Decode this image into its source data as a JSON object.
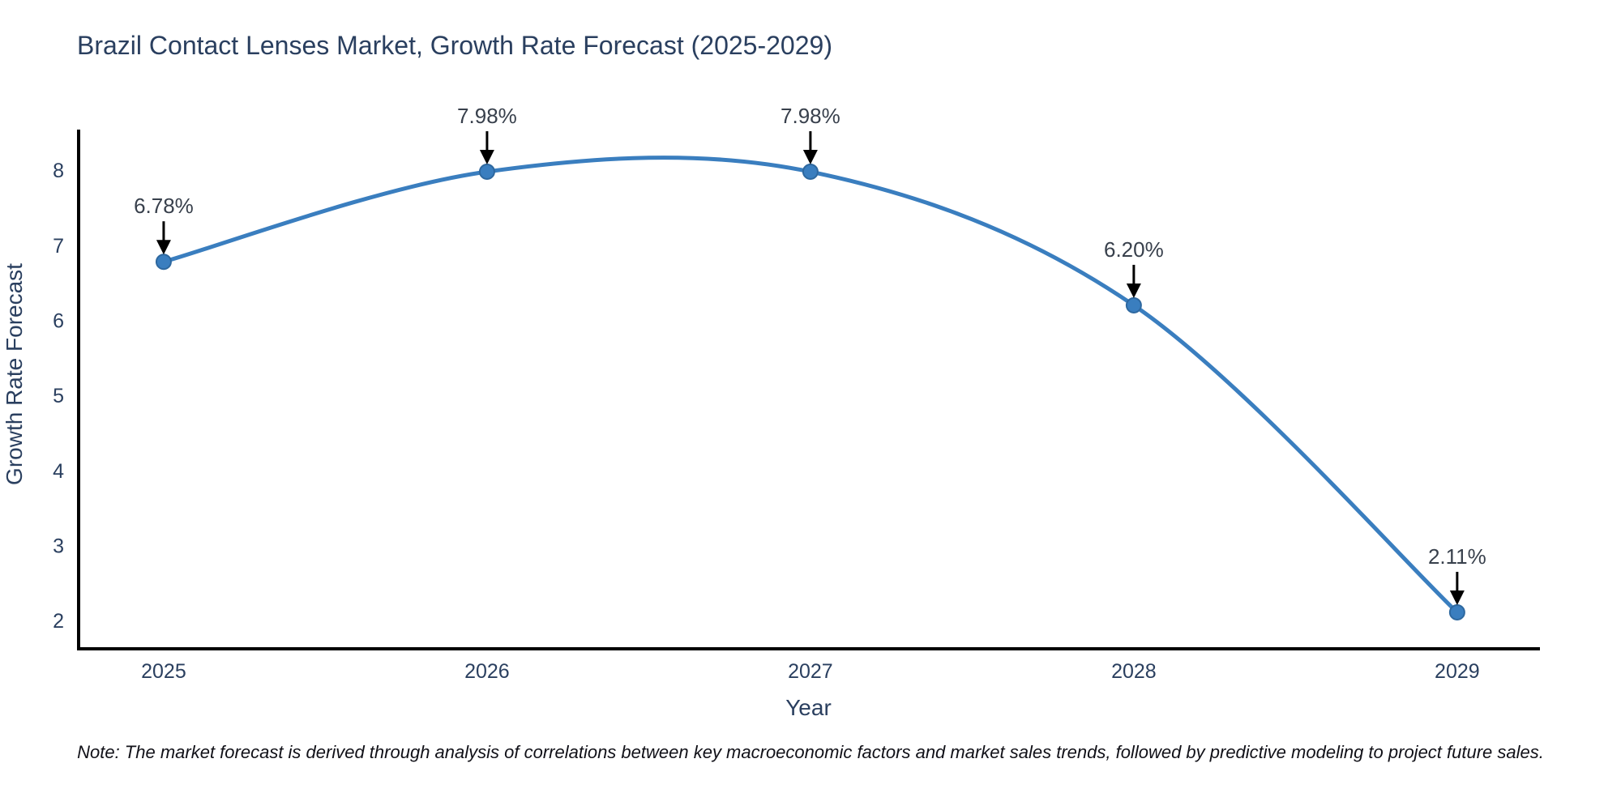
{
  "chart_data": {
    "type": "line",
    "title": "Brazil Contact Lenses Market, Growth Rate Forecast (2025-2029)",
    "xlabel": "Year",
    "ylabel": "Growth Rate Forecast",
    "x": [
      2025,
      2026,
      2027,
      2028,
      2029
    ],
    "values": [
      6.78,
      7.98,
      7.98,
      6.2,
      2.11
    ],
    "point_labels": [
      "6.78%",
      "7.98%",
      "7.98%",
      "6.20%",
      "2.11%"
    ],
    "yticks": [
      2,
      3,
      4,
      5,
      6,
      7,
      8
    ],
    "xticks": [
      2025,
      2026,
      2027,
      2028,
      2029
    ],
    "xlim": [
      2024.737,
      2029.256
    ],
    "ylim": [
      1.624,
      8.541
    ],
    "line_shape": "spline",
    "grid": false,
    "legend": "none",
    "colors": {
      "line": "#3a7ebf",
      "marker_fill": "#3a7ebf",
      "marker_edge": "#2e689f",
      "axis": "#000000",
      "arrow": "#000000",
      "tick_text": "#2a3f5f",
      "annotation_text": "#38404c"
    }
  },
  "note": "Note: The market forecast is derived through analysis of correlations between key macroeconomic factors and market sales trends, followed by predictive modeling to project future sales."
}
